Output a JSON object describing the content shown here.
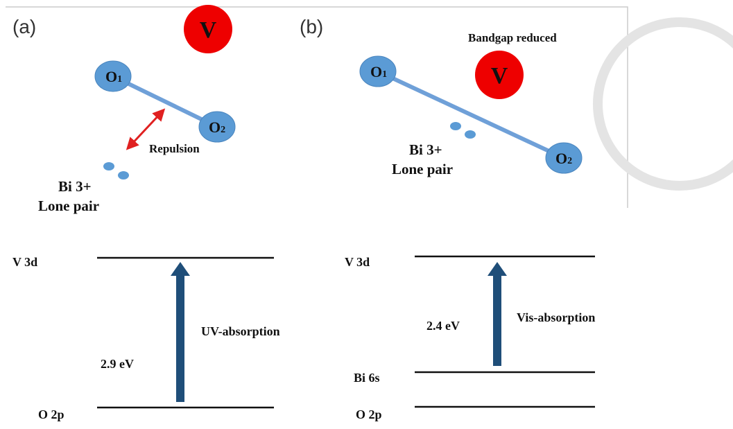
{
  "panel_a": {
    "label": "(a)",
    "vanadium": "V",
    "oxygen_1": {
      "symbol": "O",
      "subscript": "1"
    },
    "oxygen_2": {
      "symbol": "O",
      "subscript": "2"
    },
    "repulsion": "Repulsion",
    "bi_ion": "Bi 3+",
    "lone_pair": "Lone pair",
    "level_top": "V 3d",
    "level_bottom": "O 2p",
    "gap": "2.9 eV",
    "absorption": "UV-absorption"
  },
  "panel_b": {
    "label": "(b)",
    "note": "Bandgap reduced",
    "vanadium": "V",
    "oxygen_1": {
      "symbol": "O",
      "subscript": "1"
    },
    "oxygen_2": {
      "symbol": "O",
      "subscript": "2"
    },
    "bi_ion": "Bi 3+",
    "lone_pair": "Lone pair",
    "level_top": "V 3d",
    "level_middle": "Bi 6s",
    "level_bottom": "O 2p",
    "gap": "2.4 eV",
    "absorption": "Vis-absorption"
  }
}
